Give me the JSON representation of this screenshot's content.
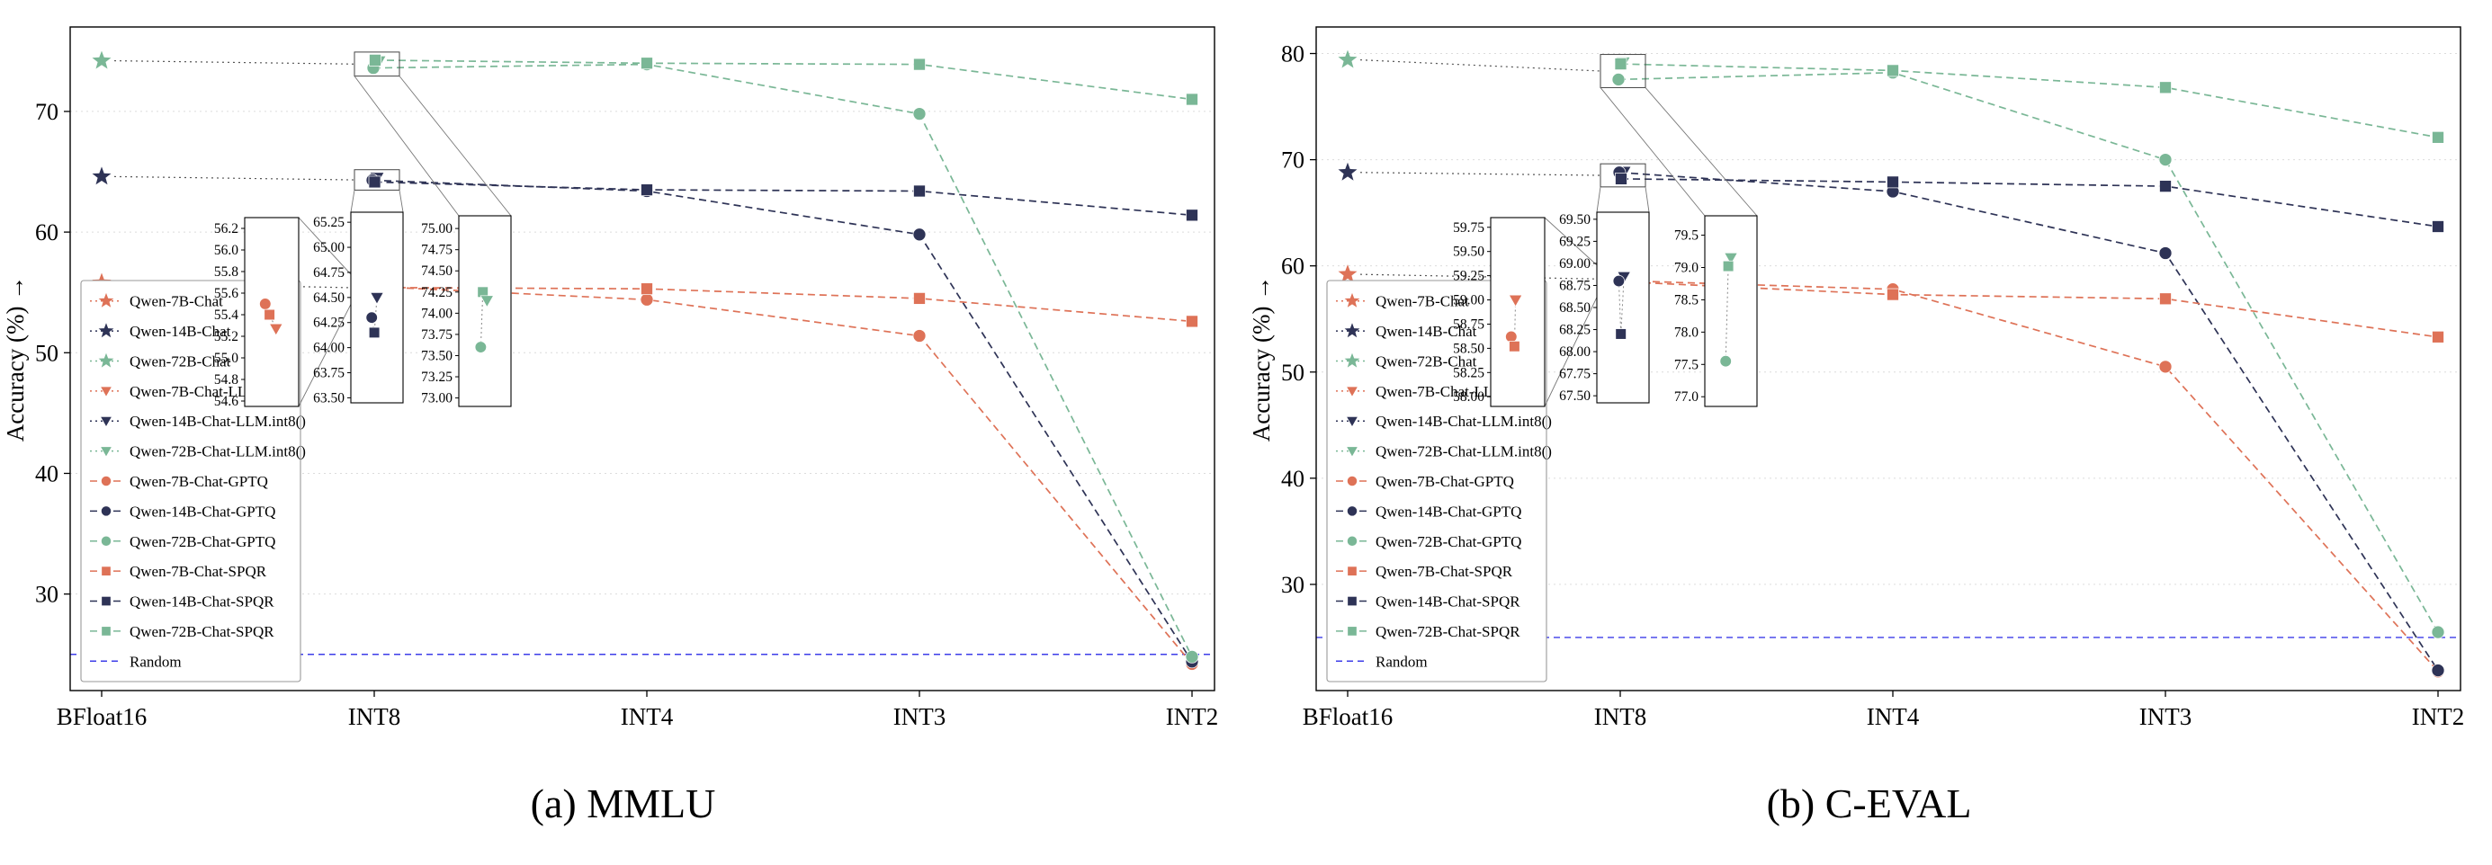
{
  "colors": {
    "series_orange": "#DE7257",
    "series_navy": "#2E3356",
    "series_green": "#7AB796",
    "random_line": "#3C3CE8",
    "grid": "#DCDCDC",
    "connector": "#555555",
    "axis": "#000000"
  },
  "chart_data": {
    "type": "line",
    "charts": [
      {
        "caption": "(a) MMLU",
        "ylabel": "Accuracy (%) ↑",
        "categories": [
          "BFloat16",
          "INT8",
          "INT4",
          "INT3",
          "INT2"
        ],
        "ylim": [
          22,
          77
        ],
        "yticks": [
          30,
          40,
          50,
          60,
          70
        ],
        "random": {
          "label": "Random",
          "value": 25.0
        },
        "series": [
          {
            "name": "Qwen-7B-Chat",
            "color": "orange",
            "marker": "star",
            "line": "dotted",
            "x": [
              0
            ],
            "y": [
              55.8
            ],
            "inset": 0
          },
          {
            "name": "Qwen-14B-Chat",
            "color": "navy",
            "marker": "star",
            "line": "dotted",
            "x": [
              0
            ],
            "y": [
              64.6
            ],
            "inset": 1
          },
          {
            "name": "Qwen-72B-Chat",
            "color": "green",
            "marker": "star",
            "line": "dotted",
            "x": [
              0
            ],
            "y": [
              74.2
            ],
            "inset": 2
          },
          {
            "name": "Qwen-7B-Chat-LLM.int8()",
            "color": "orange",
            "marker": "triangle",
            "line": "none",
            "x": [
              1
            ],
            "y": [
              55.27
            ]
          },
          {
            "name": "Qwen-14B-Chat-LLM.int8()",
            "color": "navy",
            "marker": "triangle",
            "line": "none",
            "x": [
              1
            ],
            "y": [
              64.5
            ]
          },
          {
            "name": "Qwen-72B-Chat-LLM.int8()",
            "color": "green",
            "marker": "triangle",
            "line": "none",
            "x": [
              1
            ],
            "y": [
              74.15
            ]
          },
          {
            "name": "Qwen-7B-Chat-GPTQ",
            "color": "orange",
            "marker": "circle",
            "line": "dashed",
            "x": [
              1,
              2,
              3,
              4
            ],
            "y": [
              55.5,
              54.4,
              51.4,
              24.2
            ]
          },
          {
            "name": "Qwen-14B-Chat-GPTQ",
            "color": "navy",
            "marker": "circle",
            "line": "dashed",
            "x": [
              1,
              2,
              3,
              4
            ],
            "y": [
              64.3,
              63.4,
              59.8,
              24.4
            ]
          },
          {
            "name": "Qwen-72B-Chat-GPTQ",
            "color": "green",
            "marker": "circle",
            "line": "dashed",
            "x": [
              1,
              2,
              3,
              4
            ],
            "y": [
              73.6,
              73.9,
              69.8,
              24.8
            ]
          },
          {
            "name": "Qwen-7B-Chat-SPQR",
            "color": "orange",
            "marker": "square",
            "line": "dashed",
            "x": [
              1,
              2,
              3,
              4
            ],
            "y": [
              55.4,
              55.3,
              54.5,
              52.6
            ]
          },
          {
            "name": "Qwen-14B-Chat-SPQR",
            "color": "navy",
            "marker": "square",
            "line": "dashed",
            "x": [
              1,
              2,
              3,
              4
            ],
            "y": [
              64.15,
              63.5,
              63.4,
              61.4
            ]
          },
          {
            "name": "Qwen-72B-Chat-SPQR",
            "color": "green",
            "marker": "square",
            "line": "dashed",
            "x": [
              1,
              2,
              3,
              4
            ],
            "y": [
              74.25,
              74.0,
              73.9,
              71.0
            ]
          }
        ],
        "insets": [
          {
            "ylim": [
              54.55,
              56.3
            ],
            "yticks": [
              "56.2",
              "56.0",
              "55.8",
              "55.6",
              "55.4",
              "55.2",
              "55.0",
              "54.8",
              "54.6"
            ],
            "points": [
              {
                "marker": "circle",
                "color": "orange",
                "fx": 0.38,
                "y": 55.5
              },
              {
                "marker": "square",
                "color": "orange",
                "fx": 0.46,
                "y": 55.4
              },
              {
                "marker": "triangle",
                "color": "orange",
                "fx": 0.58,
                "y": 55.27
              }
            ]
          },
          {
            "ylim": [
              63.45,
              65.35
            ],
            "yticks": [
              "65.25",
              "65.00",
              "64.75",
              "64.50",
              "64.25",
              "64.00",
              "63.75",
              "63.50"
            ],
            "points": [
              {
                "marker": "triangle",
                "color": "navy",
                "fx": 0.5,
                "y": 64.5
              },
              {
                "marker": "circle",
                "color": "navy",
                "fx": 0.4,
                "y": 64.3
              },
              {
                "marker": "square",
                "color": "navy",
                "fx": 0.45,
                "y": 64.15
              }
            ]
          },
          {
            "ylim": [
              72.9,
              75.15
            ],
            "yticks": [
              "75.00",
              "74.75",
              "74.50",
              "74.25",
              "74.00",
              "73.75",
              "73.50",
              "73.25",
              "73.00"
            ],
            "points": [
              {
                "marker": "square",
                "color": "green",
                "fx": 0.46,
                "y": 74.25
              },
              {
                "marker": "triangle",
                "color": "green",
                "fx": 0.54,
                "y": 74.15
              },
              {
                "marker": "circle",
                "color": "green",
                "fx": 0.42,
                "y": 73.6
              }
            ]
          }
        ]
      },
      {
        "caption": "(b) C-EVAL",
        "ylabel": "Accuracy (%) ↑",
        "categories": [
          "BFloat16",
          "INT8",
          "INT4",
          "INT3",
          "INT2"
        ],
        "ylim": [
          20,
          82.5
        ],
        "yticks": [
          30,
          40,
          50,
          60,
          70,
          80
        ],
        "random": {
          "label": "Random",
          "value": 25.0
        },
        "series": [
          {
            "name": "Qwen-7B-Chat",
            "color": "orange",
            "marker": "star",
            "line": "dotted",
            "x": [
              0
            ],
            "y": [
              59.2
            ],
            "inset": 0
          },
          {
            "name": "Qwen-14B-Chat",
            "color": "navy",
            "marker": "star",
            "line": "dotted",
            "x": [
              0
            ],
            "y": [
              68.8
            ],
            "inset": 1
          },
          {
            "name": "Qwen-72B-Chat",
            "color": "green",
            "marker": "star",
            "line": "dotted",
            "x": [
              0
            ],
            "y": [
              79.4
            ],
            "inset": 2
          },
          {
            "name": "Qwen-7B-Chat-LLM.int8()",
            "color": "orange",
            "marker": "triangle",
            "line": "none",
            "x": [
              1
            ],
            "y": [
              59.0
            ]
          },
          {
            "name": "Qwen-14B-Chat-LLM.int8()",
            "color": "navy",
            "marker": "triangle",
            "line": "none",
            "x": [
              1
            ],
            "y": [
              68.85
            ]
          },
          {
            "name": "Qwen-72B-Chat-LLM.int8()",
            "color": "green",
            "marker": "triangle",
            "line": "none",
            "x": [
              1
            ],
            "y": [
              79.15
            ]
          },
          {
            "name": "Qwen-7B-Chat-GPTQ",
            "color": "orange",
            "marker": "circle",
            "line": "dashed",
            "x": [
              1,
              2,
              3,
              4
            ],
            "y": [
              58.62,
              57.8,
              50.5,
              21.8
            ]
          },
          {
            "name": "Qwen-14B-Chat-GPTQ",
            "color": "navy",
            "marker": "circle",
            "line": "dashed",
            "x": [
              1,
              2,
              3,
              4
            ],
            "y": [
              68.8,
              67.0,
              61.2,
              21.9
            ]
          },
          {
            "name": "Qwen-72B-Chat-GPTQ",
            "color": "green",
            "marker": "circle",
            "line": "dashed",
            "x": [
              1,
              2,
              3,
              4
            ],
            "y": [
              77.55,
              78.2,
              70.0,
              25.5
            ]
          },
          {
            "name": "Qwen-7B-Chat-SPQR",
            "color": "orange",
            "marker": "square",
            "line": "dashed",
            "x": [
              1,
              2,
              3,
              4
            ],
            "y": [
              58.52,
              57.3,
              56.9,
              53.3
            ]
          },
          {
            "name": "Qwen-14B-Chat-SPQR",
            "color": "navy",
            "marker": "square",
            "line": "dashed",
            "x": [
              1,
              2,
              3,
              4
            ],
            "y": [
              68.2,
              67.9,
              67.5,
              63.7
            ]
          },
          {
            "name": "Qwen-72B-Chat-SPQR",
            "color": "green",
            "marker": "square",
            "line": "dashed",
            "x": [
              1,
              2,
              3,
              4
            ],
            "y": [
              79.02,
              78.4,
              76.8,
              72.1
            ]
          }
        ],
        "insets": [
          {
            "ylim": [
              57.9,
              59.85
            ],
            "yticks": [
              "59.75",
              "59.50",
              "59.25",
              "59.00",
              "58.75",
              "58.50",
              "58.25",
              "58.00"
            ],
            "points": [
              {
                "marker": "triangle",
                "color": "orange",
                "fx": 0.46,
                "y": 59.0
              },
              {
                "marker": "circle",
                "color": "orange",
                "fx": 0.38,
                "y": 58.62
              },
              {
                "marker": "square",
                "color": "orange",
                "fx": 0.44,
                "y": 58.52
              }
            ]
          },
          {
            "ylim": [
              67.42,
              69.58
            ],
            "yticks": [
              "69.50",
              "69.25",
              "69.00",
              "68.75",
              "68.50",
              "68.25",
              "68.00",
              "67.75",
              "67.50"
            ],
            "points": [
              {
                "marker": "triangle",
                "color": "navy",
                "fx": 0.52,
                "y": 68.85
              },
              {
                "marker": "circle",
                "color": "navy",
                "fx": 0.42,
                "y": 68.8
              },
              {
                "marker": "square",
                "color": "navy",
                "fx": 0.46,
                "y": 68.2
              }
            ]
          },
          {
            "ylim": [
              76.85,
              79.8
            ],
            "yticks": [
              "79.5",
              "79.0",
              "78.5",
              "78.0",
              "77.5",
              "77.0"
            ],
            "points": [
              {
                "marker": "triangle",
                "color": "green",
                "fx": 0.5,
                "y": 79.15
              },
              {
                "marker": "square",
                "color": "green",
                "fx": 0.45,
                "y": 79.02
              },
              {
                "marker": "circle",
                "color": "green",
                "fx": 0.4,
                "y": 77.55
              }
            ]
          }
        ]
      }
    ]
  }
}
